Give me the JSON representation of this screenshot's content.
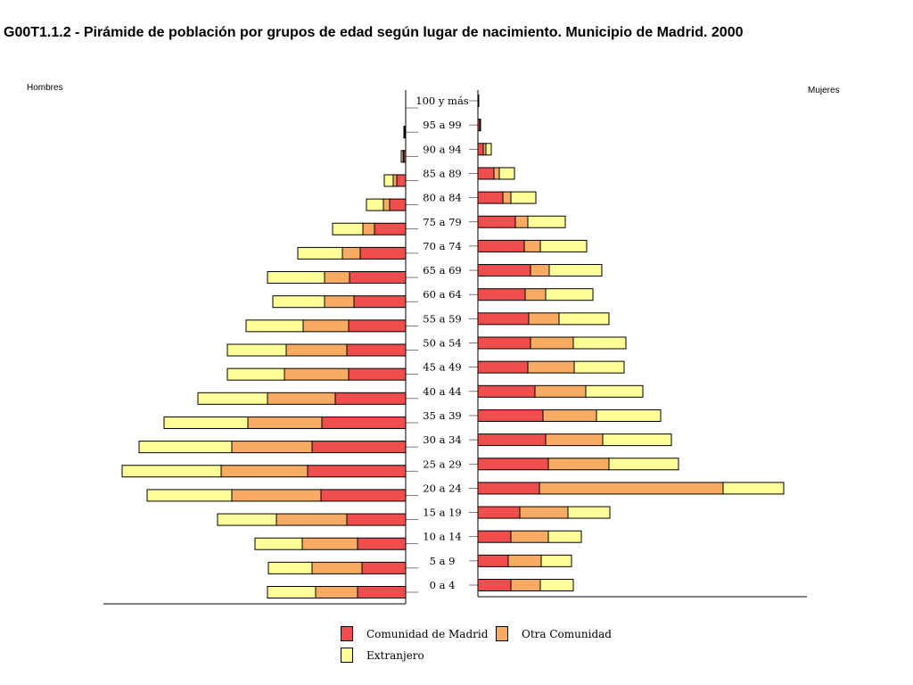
{
  "title": "G00T1.1.2 - Pirámide de población por grupos de edad según lugar de nacimiento. Municipio de Madrid. 2000",
  "left_label": "Hombres",
  "right_label": "Mujeres",
  "legend": [
    {
      "label": "Comunidad de Madrid",
      "color": "#f04e4e"
    },
    {
      "label": "Otra Comunidad",
      "color": "#f7ab63"
    },
    {
      "label": "Extranjero",
      "color": "#ffff99"
    }
  ],
  "chart_data": {
    "type": "bar",
    "orientation": "horizontal-pyramid",
    "categories": [
      "0 a 4",
      "5 a 9",
      "10 a 14",
      "15 a 19",
      "20 a 24",
      "25 a 29",
      "30 a 34",
      "35 a 39",
      "40 a 44",
      "45 a 49",
      "50 a 54",
      "55 a 59",
      "60 a 64",
      "65 a 69",
      "70 a 74",
      "75 a 79",
      "80 a 84",
      "85 a 89",
      "90 a 94",
      "95 a 99",
      "100 y más"
    ],
    "category_labels": [
      "0 a 4",
      "5 a 9",
      "10 a 14",
      "15 a 19",
      "20 a 24",
      "25 a 29",
      "30 a 34",
      "35 a 39",
      "40 a 44",
      "45 a 49",
      "50 a 54",
      "55 a 59",
      "60 a 64",
      "65 a 69",
      "70 a 74",
      "75 a 79",
      "80 a 84",
      "85 a 89",
      "90 a 94",
      "95 a 99",
      "100 y más"
    ],
    "hombres": [
      {
        "name": "Comunidad de Madrid",
        "values": [
          54,
          49,
          54,
          66,
          95,
          110,
          105,
          94,
          79,
          64,
          66,
          64,
          58,
          63,
          51,
          35,
          18,
          10,
          2,
          1,
          0
        ]
      },
      {
        "name": "Otra Comunidad",
        "values": [
          47,
          56,
          62,
          79,
          100,
          97,
          90,
          83,
          76,
          72,
          68,
          51,
          33,
          28,
          20,
          13,
          7,
          4,
          1,
          0,
          0
        ]
      },
      {
        "name": "Extranjero",
        "values": [
          54,
          49,
          53,
          66,
          95,
          111,
          104,
          94,
          78,
          64,
          66,
          64,
          58,
          64,
          50,
          34,
          19,
          10,
          2,
          1,
          0
        ]
      }
    ],
    "mujeres": [
      {
        "name": "Comunidad de Madrid",
        "values": [
          37,
          34,
          37,
          47,
          69,
          79,
          76,
          73,
          64,
          56,
          59,
          57,
          53,
          59,
          52,
          42,
          28,
          18,
          6,
          2,
          0
        ]
      },
      {
        "name": "Otra Comunidad",
        "values": [
          33,
          37,
          42,
          54,
          206,
          68,
          64,
          60,
          57,
          52,
          48,
          34,
          23,
          21,
          18,
          14,
          9,
          6,
          3,
          1,
          0
        ]
      },
      {
        "name": "Extranjero",
        "values": [
          37,
          34,
          37,
          47,
          68,
          78,
          77,
          72,
          64,
          56,
          59,
          56,
          53,
          59,
          52,
          42,
          28,
          17,
          6,
          0,
          1
        ]
      }
    ]
  }
}
